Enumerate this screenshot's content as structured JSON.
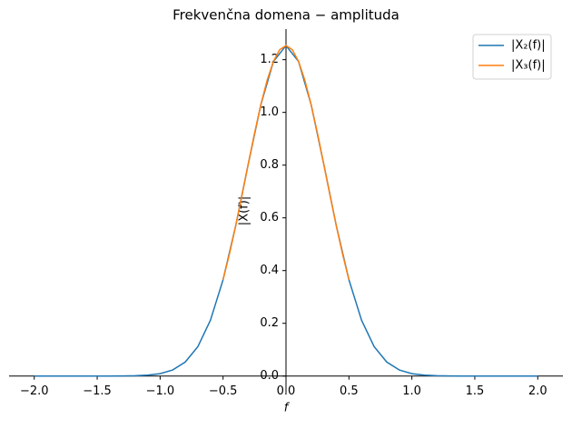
{
  "chart_data": {
    "type": "line",
    "title": "Frekvenčna domena − amplituda",
    "xlabel": "f",
    "ylabel": "|X(f)|",
    "xlim": [
      -2.2,
      2.2
    ],
    "ylim": [
      -0.063,
      1.316
    ],
    "xticks": [
      {
        "value": -2,
        "label": "−2.0"
      },
      {
        "value": -1.5,
        "label": "−1.5"
      },
      {
        "value": -1,
        "label": "−1.0"
      },
      {
        "value": -0.5,
        "label": "−0.5"
      },
      {
        "value": 0,
        "label": "0.0"
      },
      {
        "value": 0.5,
        "label": "0.5"
      },
      {
        "value": 1,
        "label": "1.0"
      },
      {
        "value": 1.5,
        "label": "1.5"
      },
      {
        "value": 2,
        "label": "2.0"
      }
    ],
    "yticks": [
      {
        "value": 0,
        "label": "0.0"
      },
      {
        "value": 0.2,
        "label": "0.2"
      },
      {
        "value": 0.4,
        "label": "0.4"
      },
      {
        "value": 0.6,
        "label": "0.6"
      },
      {
        "value": 0.8,
        "label": "0.8"
      },
      {
        "value": 1,
        "label": "1.0"
      },
      {
        "value": 1.2,
        "label": "1.2"
      }
    ],
    "legend": "upper right",
    "series": [
      {
        "name": "|X₂(f)|",
        "color": "#1f77b4",
        "x": [
          -2,
          -1.9,
          -1.8,
          -1.7,
          -1.6,
          -1.5,
          -1.4,
          -1.3,
          -1.2,
          -1.1,
          -1,
          -0.9,
          -0.8,
          -0.7,
          -0.6,
          -0.5,
          -0.4,
          -0.3,
          -0.2,
          -0.1,
          0,
          0.1,
          0.2,
          0.3,
          0.4,
          0.5,
          0.6,
          0.7,
          0.8,
          0.9,
          1,
          1.1,
          1.2,
          1.3,
          1.4,
          1.5,
          1.6,
          1.7,
          1.8,
          1.9,
          2
        ],
        "values": [
          0,
          0,
          0,
          0,
          0,
          0,
          0.0001,
          0.0003,
          0.001,
          0.0032,
          0.009,
          0.023,
          0.0533,
          0.1117,
          0.2121,
          0.365,
          0.5691,
          0.8038,
          1.0288,
          1.193,
          1.2533,
          1.193,
          1.0288,
          0.8038,
          0.5691,
          0.365,
          0.2121,
          0.1117,
          0.0533,
          0.023,
          0.009,
          0.0032,
          0.001,
          0.0003,
          0.0001,
          0,
          0,
          0,
          0,
          0,
          0
        ]
      },
      {
        "name": "|X₃(f)|",
        "color": "#ff7f0e",
        "x": [
          -0.5,
          -0.45,
          -0.4,
          -0.35,
          -0.3,
          -0.25,
          -0.2,
          -0.15,
          -0.1,
          -0.05,
          0,
          0.05,
          0.1,
          0.15,
          0.2,
          0.25,
          0.3,
          0.35,
          0.4,
          0.45,
          0.5
        ],
        "values": [
          0.365,
          0.4614,
          0.5691,
          0.6847,
          0.8038,
          0.9207,
          1.0288,
          1.1216,
          1.193,
          1.2379,
          1.2533,
          1.2379,
          1.193,
          1.1216,
          1.0288,
          0.9207,
          0.8038,
          0.6847,
          0.5691,
          0.4614,
          0.365
        ]
      }
    ]
  }
}
